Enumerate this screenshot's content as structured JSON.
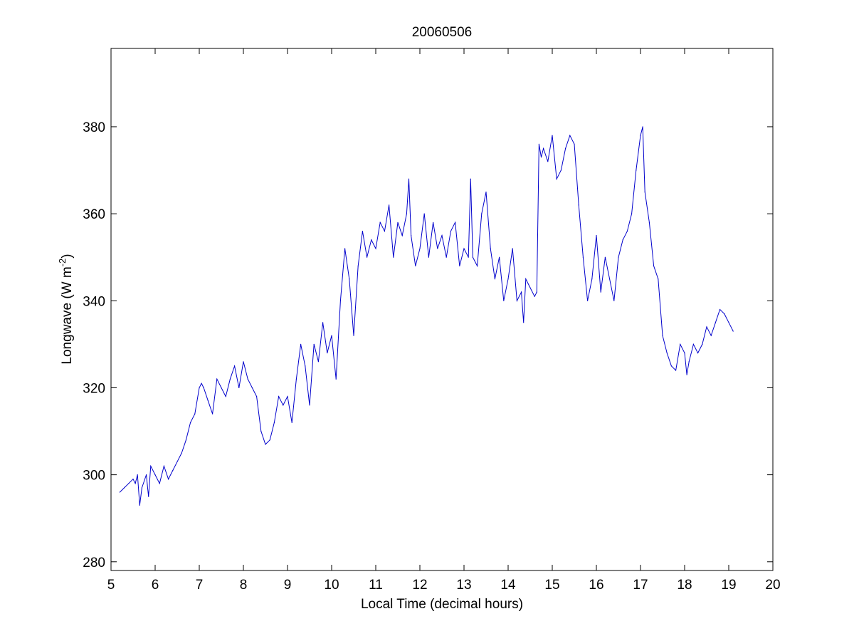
{
  "chart_data": {
    "type": "line",
    "title": "20060506",
    "xlabel": "Local Time (decimal hours)",
    "ylabel_main": "Longwave (W m",
    "ylabel_sup": "-2",
    "ylabel_close": ")",
    "xlim": [
      5,
      20
    ],
    "ylim": [
      278,
      398
    ],
    "xticks": [
      5,
      6,
      7,
      8,
      9,
      10,
      11,
      12,
      13,
      14,
      15,
      16,
      17,
      18,
      19,
      20
    ],
    "yticks": [
      280,
      300,
      320,
      340,
      360,
      380
    ],
    "grid": false,
    "line_color": "#0000cc",
    "series": [
      {
        "x": [
          5.2,
          5.3,
          5.4,
          5.5,
          5.55,
          5.6,
          5.65,
          5.7,
          5.8,
          5.85,
          5.9,
          6.0,
          6.1,
          6.2,
          6.3,
          6.4,
          6.5,
          6.6,
          6.7,
          6.8,
          6.9,
          7.0,
          7.05,
          7.1,
          7.2,
          7.3,
          7.4,
          7.5,
          7.6,
          7.7,
          7.8,
          7.9,
          8.0,
          8.1,
          8.2,
          8.3,
          8.4,
          8.5,
          8.6,
          8.7,
          8.8,
          8.9,
          9.0,
          9.1,
          9.2,
          9.3,
          9.4,
          9.5,
          9.6,
          9.7,
          9.8,
          9.9,
          10.0,
          10.1,
          10.2,
          10.3,
          10.4,
          10.5,
          10.6,
          10.7,
          10.8,
          10.9,
          11.0,
          11.1,
          11.2,
          11.3,
          11.4,
          11.5,
          11.6,
          11.7,
          11.75,
          11.8,
          11.9,
          12.0,
          12.1,
          12.2,
          12.3,
          12.4,
          12.5,
          12.6,
          12.7,
          12.8,
          12.9,
          13.0,
          13.1,
          13.15,
          13.2,
          13.3,
          13.4,
          13.5,
          13.6,
          13.7,
          13.8,
          13.9,
          14.0,
          14.1,
          14.2,
          14.3,
          14.35,
          14.4,
          14.5,
          14.6,
          14.65,
          14.7,
          14.75,
          14.8,
          14.9,
          15.0,
          15.1,
          15.2,
          15.3,
          15.4,
          15.5,
          15.6,
          15.7,
          15.8,
          15.9,
          16.0,
          16.1,
          16.2,
          16.3,
          16.4,
          16.5,
          16.6,
          16.7,
          16.8,
          16.9,
          17.0,
          17.05,
          17.1,
          17.2,
          17.3,
          17.4,
          17.5,
          17.6,
          17.7,
          17.8,
          17.9,
          18.0,
          18.05,
          18.1,
          18.2,
          18.3,
          18.4,
          18.5,
          18.6,
          18.7,
          18.8,
          18.9,
          19.0,
          19.1
        ],
        "y": [
          296,
          297,
          298,
          299,
          298,
          300,
          293,
          297,
          300,
          295,
          302,
          300,
          298,
          302,
          299,
          301,
          303,
          305,
          308,
          312,
          314,
          320,
          321,
          320,
          317,
          314,
          322,
          320,
          318,
          322,
          325,
          320,
          326,
          322,
          320,
          318,
          310,
          307,
          308,
          312,
          318,
          316,
          318,
          312,
          322,
          330,
          325,
          316,
          330,
          326,
          335,
          328,
          332,
          322,
          340,
          352,
          345,
          332,
          348,
          356,
          350,
          354,
          352,
          358,
          356,
          362,
          350,
          358,
          355,
          360,
          368,
          355,
          348,
          352,
          360,
          350,
          358,
          352,
          355,
          350,
          356,
          358,
          348,
          352,
          350,
          368,
          350,
          348,
          360,
          365,
          352,
          345,
          350,
          340,
          345,
          352,
          340,
          342,
          335,
          345,
          343,
          341,
          342,
          376,
          373,
          375,
          372,
          378,
          368,
          370,
          375,
          378,
          376,
          362,
          350,
          340,
          345,
          355,
          342,
          350,
          345,
          340,
          350,
          354,
          356,
          360,
          370,
          378,
          380,
          365,
          358,
          348,
          345,
          332,
          328,
          325,
          324,
          330,
          328,
          323,
          326,
          330,
          328,
          330,
          334,
          332,
          335,
          338,
          337,
          335,
          333
        ]
      }
    ]
  }
}
